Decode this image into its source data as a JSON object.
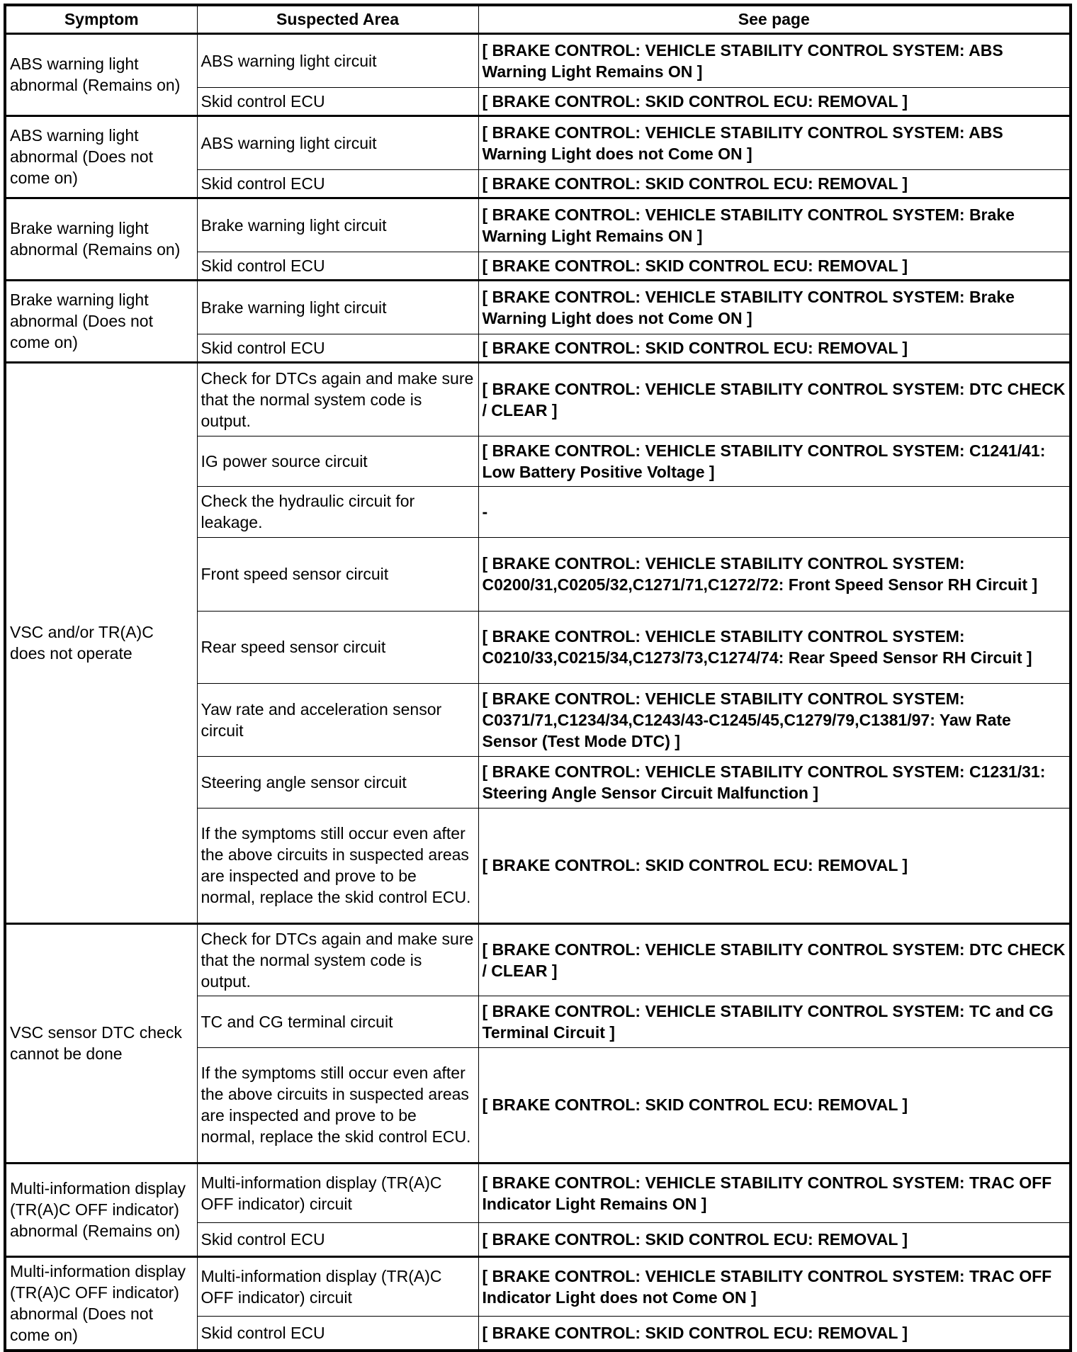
{
  "headers": [
    "Symptom",
    "Suspected Area",
    "See page"
  ],
  "groups": [
    {
      "symptom": "ABS warning light abnormal (Remains on)",
      "rows": [
        {
          "area": "ABS warning light circuit",
          "ref": "[ BRAKE CONTROL: VEHICLE STABILITY CONTROL SYSTEM: ABS Warning Light Remains ON ]"
        },
        {
          "area": "Skid control ECU",
          "ref": "[ BRAKE CONTROL: SKID CONTROL ECU: REMOVAL ]"
        }
      ]
    },
    {
      "symptom": "ABS warning light abnormal (Does not come on)",
      "rows": [
        {
          "area": "ABS warning light circuit",
          "ref": "[ BRAKE CONTROL: VEHICLE STABILITY CONTROL SYSTEM: ABS Warning Light does not Come ON ]"
        },
        {
          "area": "Skid control ECU",
          "ref": "[ BRAKE CONTROL: SKID CONTROL ECU: REMOVAL ]"
        }
      ]
    },
    {
      "symptom": "Brake warning light abnormal (Remains on)",
      "rows": [
        {
          "area": "Brake warning light circuit",
          "ref": "[ BRAKE CONTROL: VEHICLE STABILITY CONTROL SYSTEM: Brake Warning Light Remains ON ]"
        },
        {
          "area": "Skid control ECU",
          "ref": "[ BRAKE CONTROL: SKID CONTROL ECU: REMOVAL ]"
        }
      ]
    },
    {
      "symptom": "Brake warning light abnormal (Does not come on)",
      "rows": [
        {
          "area": "Brake warning light circuit",
          "ref": "[ BRAKE CONTROL: VEHICLE STABILITY CONTROL SYSTEM: Brake Warning Light does not Come ON ]"
        },
        {
          "area": "Skid control ECU",
          "ref": "[ BRAKE CONTROL: SKID CONTROL ECU: REMOVAL ]"
        }
      ]
    },
    {
      "symptom": "VSC and/or TR(A)C does not operate",
      "rows": [
        {
          "area": "Check for DTCs again and make sure that the normal system code is output.",
          "ref": "[ BRAKE CONTROL: VEHICLE STABILITY CONTROL SYSTEM: DTC CHECK / CLEAR ]"
        },
        {
          "area": "IG power source circuit",
          "ref": "[ BRAKE CONTROL: VEHICLE STABILITY CONTROL SYSTEM: C1241/41: Low Battery Positive Voltage ]"
        },
        {
          "area": "Check the hydraulic circuit for leakage.",
          "ref": "-"
        },
        {
          "area": "Front speed sensor circuit",
          "ref": "[ BRAKE CONTROL: VEHICLE STABILITY CONTROL SYSTEM: C0200/31,C0205/32,C1271/71,C1272/72: Front Speed Sensor RH Circuit ]"
        },
        {
          "area": "Rear speed sensor circuit",
          "ref": "[ BRAKE CONTROL: VEHICLE STABILITY CONTROL SYSTEM: C0210/33,C0215/34,C1273/73,C1274/74: Rear Speed Sensor RH Circuit ]"
        },
        {
          "area": "Yaw rate and acceleration sensor circuit",
          "ref": "[ BRAKE CONTROL: VEHICLE STABILITY CONTROL SYSTEM: C0371/71,C1234/34,C1243/43-C1245/45,C1279/79,C1381/97: Yaw Rate Sensor (Test Mode DTC) ]"
        },
        {
          "area": "Steering angle sensor circuit",
          "ref": "[ BRAKE CONTROL: VEHICLE STABILITY CONTROL SYSTEM: C1231/31: Steering Angle Sensor Circuit Malfunction ]"
        },
        {
          "area": "If the symptoms still occur even after the above circuits in suspected areas are inspected and prove to be normal, replace the skid control ECU.",
          "ref": "[ BRAKE CONTROL: SKID CONTROL ECU: REMOVAL ]"
        }
      ]
    },
    {
      "symptom": "VSC sensor DTC check cannot be done",
      "rows": [
        {
          "area": "Check for DTCs again and make sure that the normal system code is output.",
          "ref": "[ BRAKE CONTROL: VEHICLE STABILITY CONTROL SYSTEM: DTC CHECK / CLEAR ]"
        },
        {
          "area": "TC and CG terminal circuit",
          "ref": "[ BRAKE CONTROL: VEHICLE STABILITY CONTROL SYSTEM: TC and CG Terminal Circuit ]"
        },
        {
          "area": "If the symptoms still occur even after the above circuits in suspected areas are inspected and prove to be normal, replace the skid control ECU.",
          "ref": "[ BRAKE CONTROL: SKID CONTROL ECU: REMOVAL ]"
        }
      ]
    },
    {
      "symptom": "Multi-information display (TR(A)C OFF indicator) abnormal (Remains on)",
      "rows": [
        {
          "area": "Multi-information display (TR(A)C OFF indicator) circuit",
          "ref": "[ BRAKE CONTROL: VEHICLE STABILITY CONTROL SYSTEM: TRAC OFF Indicator Light Remains ON ]"
        },
        {
          "area": "Skid control ECU",
          "ref": "[ BRAKE CONTROL: SKID CONTROL ECU: REMOVAL ]"
        }
      ]
    },
    {
      "symptom": "Multi-information display (TR(A)C OFF indicator) abnormal (Does not come on)",
      "rows": [
        {
          "area": "Multi-information display (TR(A)C OFF indicator) circuit",
          "ref": "[ BRAKE CONTROL: VEHICLE STABILITY CONTROL SYSTEM: TRAC OFF Indicator Light does not Come ON ]"
        },
        {
          "area": "Skid control ECU",
          "ref": "[ BRAKE CONTROL: SKID CONTROL ECU: REMOVAL ]"
        }
      ]
    }
  ]
}
